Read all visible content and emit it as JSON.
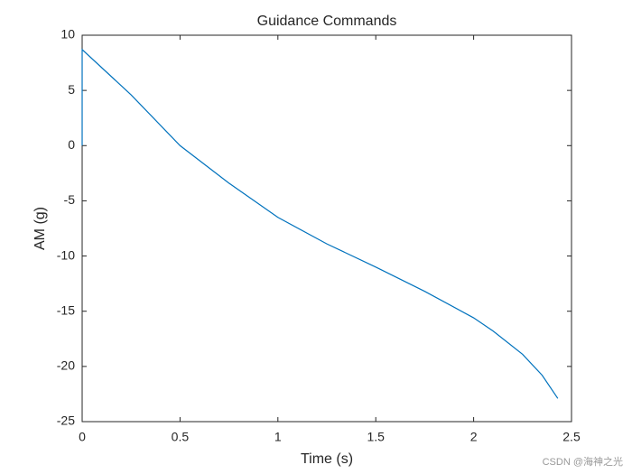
{
  "chart_data": {
    "type": "line",
    "title": "Guidance Commands",
    "x_label": "Time (s)",
    "y_label": "AM (g)",
    "x": [
      0,
      0,
      0.25,
      0.5,
      0.75,
      1,
      1.25,
      1.5,
      1.75,
      2,
      2.1,
      2.25,
      2.35,
      2.43
    ],
    "series": [
      {
        "name": "AM",
        "color": "#0072bd",
        "values": [
          0,
          8.7,
          4.6,
          0,
          -3.4,
          -6.5,
          -8.9,
          -11.0,
          -13.2,
          -15.6,
          -16.8,
          -18.9,
          -20.8,
          -22.9
        ]
      }
    ],
    "xlim": [
      0,
      2.5
    ],
    "xticks": [
      0,
      0.5,
      1,
      1.5,
      2,
      2.5
    ],
    "ylim": [
      -25,
      10
    ],
    "yticks": [
      -25,
      -20,
      -15,
      -10,
      -5,
      0,
      5,
      10
    ],
    "watermark": "CSDN @海神之光"
  }
}
